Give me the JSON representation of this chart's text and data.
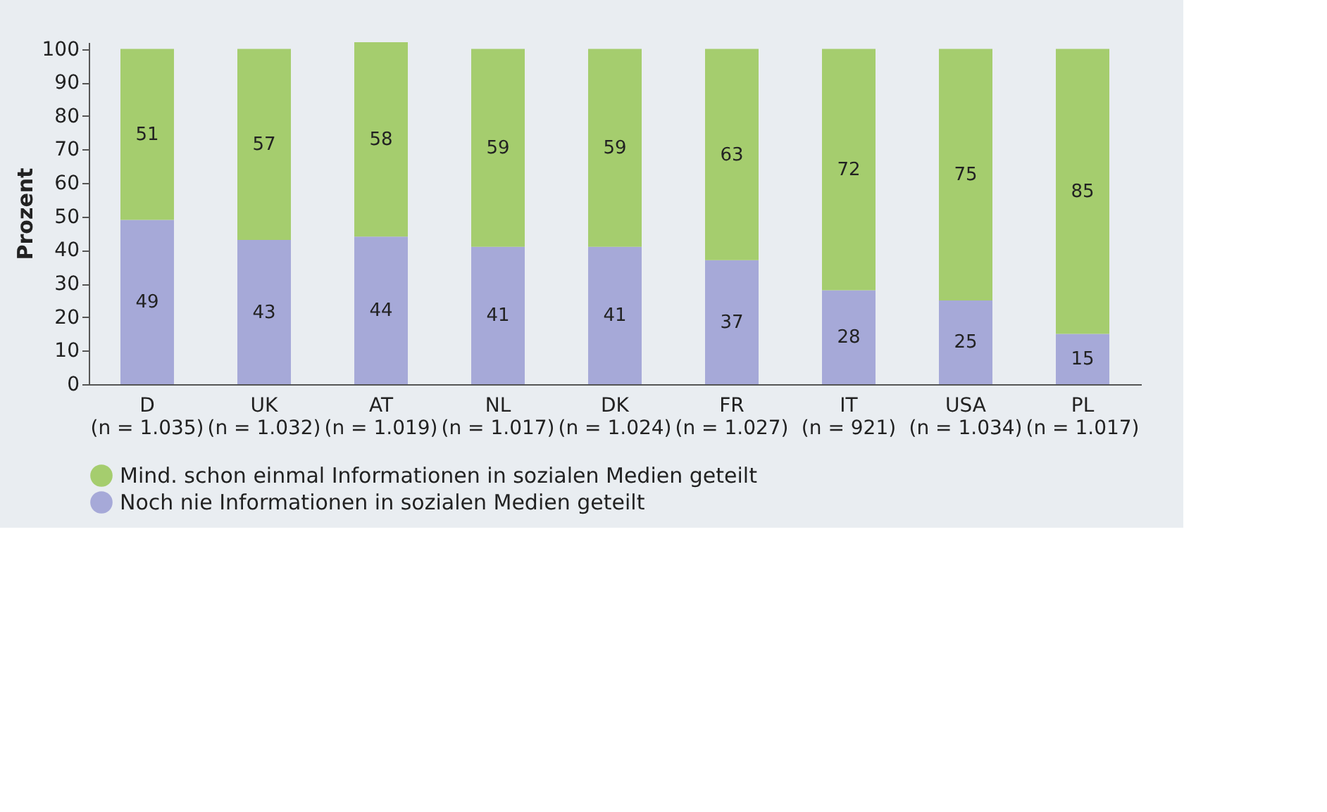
{
  "chart_data": {
    "type": "bar",
    "stacked": true,
    "ylabel": "Prozent",
    "categories": [
      "D\n(n = 1.035)",
      "UK\n(n = 1.032)",
      "AT\n(n = 1.019)",
      "NL\n(n = 1.017)",
      "DK\n(n = 1.024)",
      "FR\n(n = 1.027)",
      "IT\n(n = 921)",
      "USA\n(n = 1.034)",
      "PL\n(n = 1.017)"
    ],
    "series": [
      {
        "name": "Noch nie Informationen in sozialen Medien geteilt",
        "color": "#a6a9d8",
        "values": [
          49,
          43,
          44,
          41,
          41,
          37,
          28,
          25,
          15
        ]
      },
      {
        "name": "Mind. schon einmal Informationen in sozialen Medien geteilt",
        "color": "#a5cd6e",
        "values": [
          51,
          57,
          58,
          59,
          59,
          63,
          72,
          75,
          85
        ]
      }
    ],
    "ylim": [
      0,
      102
    ],
    "yticks": [
      0,
      10,
      20,
      30,
      40,
      50,
      60,
      70,
      80,
      90,
      100
    ],
    "grid": false,
    "legend": "bottom left",
    "data_labels": true
  }
}
